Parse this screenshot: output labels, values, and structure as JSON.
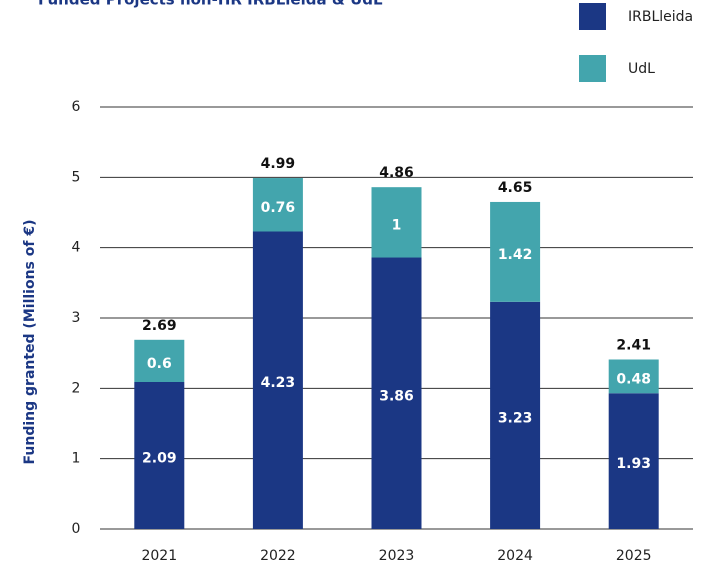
{
  "chart_data": {
    "type": "stacked_bar",
    "title": "Funded Projects non-HR IRBLleida & UdL",
    "y_label": "Funding granted (Millions of €)",
    "categories": [
      "2021",
      "2022",
      "2023",
      "2024",
      "2025"
    ],
    "series": [
      {
        "name": "IRBLleida",
        "color": "#1b3784",
        "values": [
          2.09,
          4.23,
          3.86,
          3.23,
          1.93
        ]
      },
      {
        "name": "UdL",
        "color": "#43a5ad",
        "values": [
          0.6,
          0.76,
          1,
          1.42,
          0.48
        ]
      }
    ],
    "totals": [
      2.69,
      4.99,
      4.86,
      4.65,
      2.41
    ],
    "ylim": [
      0,
      6
    ],
    "yticks": [
      0,
      1,
      2,
      3,
      4,
      5,
      6
    ],
    "grid": true
  }
}
